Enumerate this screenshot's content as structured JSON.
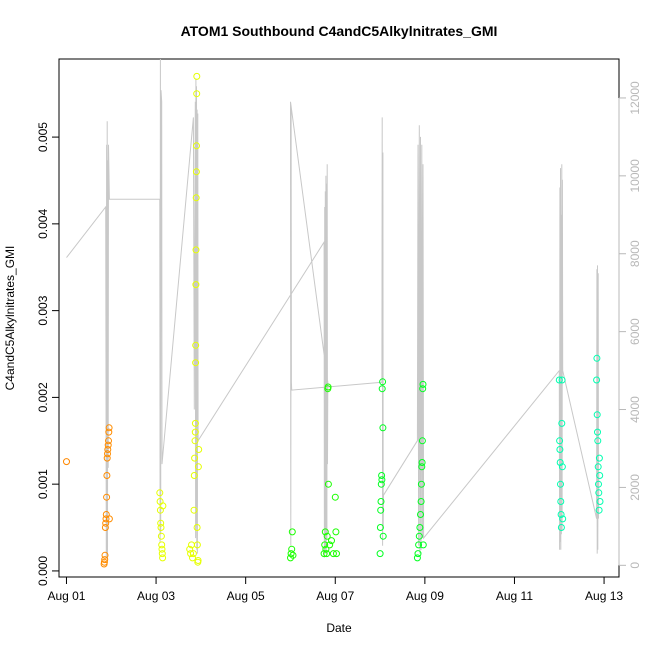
{
  "chart_data": {
    "type": "scatter",
    "title": "ATOM1 Southbound C4andC5Alkylnitrates_GMI",
    "xlabel": "Date",
    "ylabel": "C4andC5Alkylnitrates_GMI",
    "x_ticks": [
      "Aug 01",
      "Aug 03",
      "Aug 05",
      "Aug 07",
      "Aug 09",
      "Aug 11",
      "Aug 13"
    ],
    "y_ticks": [
      "0.000",
      "0.001",
      "0.002",
      "0.003",
      "0.004",
      "0.005"
    ],
    "y2_ticks": [
      "0",
      "2000",
      "4000",
      "6000",
      "8000",
      "10000",
      "12000"
    ],
    "xlim": [
      "2016-07-31T20:00",
      "2016-08-13T08:00"
    ],
    "ylim": [
      -7e-05,
      0.0059
    ],
    "y2lim": [
      -300,
      13000
    ],
    "grid": false,
    "legend": "none",
    "colors": {
      "altitude_line": "#c8c8c8",
      "axis": "#000000",
      "right_axis": "#b8b8b8",
      "marker_day01": "#ff8c00",
      "marker_day03": "#e6ff00",
      "marker_day06": "#1aff00",
      "marker_day09": "#00ff20",
      "marker_day12": "#00ffb0"
    },
    "series": [
      {
        "marker": "circle-open",
        "points": [
          [
            "2016-08-01T00:00",
            0.00126,
            "#ff8800"
          ],
          [
            "2016-08-01T20:10",
            8e-05,
            "#ff8c00"
          ],
          [
            "2016-08-01T20:20",
            0.0001,
            "#ff8c00"
          ],
          [
            "2016-08-01T20:30",
            0.00013,
            "#ff8c00"
          ],
          [
            "2016-08-01T20:40",
            0.00018,
            "#ff8c00"
          ],
          [
            "2016-08-01T20:50",
            0.0005,
            "#ff8c00"
          ],
          [
            "2016-08-01T21:00",
            0.00055,
            "#ff8c00"
          ],
          [
            "2016-08-01T21:10",
            0.0006,
            "#ff8c00"
          ],
          [
            "2016-08-01T21:20",
            0.00065,
            "#ff8c00"
          ],
          [
            "2016-08-01T21:30",
            0.00085,
            "#ff8c00"
          ],
          [
            "2016-08-01T21:40",
            0.0011,
            "#ff8c00"
          ],
          [
            "2016-08-01T21:50",
            0.0013,
            "#ff8c00"
          ],
          [
            "2016-08-01T22:00",
            0.00135,
            "#ff8c00"
          ],
          [
            "2016-08-01T22:10",
            0.0014,
            "#ff8c00"
          ],
          [
            "2016-08-01T22:20",
            0.00145,
            "#ff8c00"
          ],
          [
            "2016-08-01T22:30",
            0.0015,
            "#ff8c00"
          ],
          [
            "2016-08-01T22:40",
            0.0016,
            "#ff8c00"
          ],
          [
            "2016-08-01T22:50",
            0.00165,
            "#ff8c00"
          ],
          [
            "2016-08-01T23:00",
            0.0006,
            "#ff8c00"
          ],
          [
            "2016-08-03T02:00",
            0.0009,
            "#e6ff00"
          ],
          [
            "2016-08-03T02:10",
            0.0008,
            "#e6ff00"
          ],
          [
            "2016-08-03T02:20",
            0.0007,
            "#e6ff00"
          ],
          [
            "2016-08-03T02:30",
            0.00055,
            "#e6ff00"
          ],
          [
            "2016-08-03T02:40",
            0.0005,
            "#e6ff00"
          ],
          [
            "2016-08-03T02:50",
            0.0004,
            "#e6ff00"
          ],
          [
            "2016-08-03T03:00",
            0.0003,
            "#e6ff00"
          ],
          [
            "2016-08-03T03:10",
            0.00025,
            "#e6ff00"
          ],
          [
            "2016-08-03T03:20",
            0.0002,
            "#e6ff00"
          ],
          [
            "2016-08-03T03:30",
            0.00015,
            "#e6ff00"
          ],
          [
            "2016-08-03T03:40",
            0.00075,
            "#e6ff00"
          ],
          [
            "2016-08-03T18:00",
            0.00025,
            "#e6ff00"
          ],
          [
            "2016-08-03T18:30",
            0.0002,
            "#e6ff00"
          ],
          [
            "2016-08-03T19:00",
            0.0003,
            "#e6ff00"
          ],
          [
            "2016-08-03T19:30",
            0.00015,
            "#e6ff00"
          ],
          [
            "2016-08-03T20:00",
            0.0002,
            "#e6ff00"
          ],
          [
            "2016-08-03T20:20",
            0.0007,
            "#e6ff00"
          ],
          [
            "2016-08-03T20:30",
            0.0011,
            "#e6ff00"
          ],
          [
            "2016-08-03T20:40",
            0.0013,
            "#e6ff00"
          ],
          [
            "2016-08-03T20:50",
            0.0015,
            "#e6ff00"
          ],
          [
            "2016-08-03T21:00",
            0.0016,
            "#e6ff00"
          ],
          [
            "2016-08-03T21:05",
            0.0017,
            "#e6ff00"
          ],
          [
            "2016-08-03T21:10",
            0.0024,
            "#e6ff00"
          ],
          [
            "2016-08-03T21:15",
            0.0026,
            "#e6ff00"
          ],
          [
            "2016-08-03T21:20",
            0.0033,
            "#e6ff00"
          ],
          [
            "2016-08-03T21:25",
            0.0037,
            "#e6ff00"
          ],
          [
            "2016-08-03T21:30",
            0.0043,
            "#e6ff00"
          ],
          [
            "2016-08-03T21:35",
            0.0046,
            "#e6ff00"
          ],
          [
            "2016-08-03T21:40",
            0.0049,
            "#e6ff00"
          ],
          [
            "2016-08-03T21:45",
            0.0055,
            "#e6ff00"
          ],
          [
            "2016-08-03T21:50",
            0.0057,
            "#e6ff00"
          ],
          [
            "2016-08-03T22:00",
            0.0005,
            "#e6ff00"
          ],
          [
            "2016-08-03T22:10",
            0.0003,
            "#e6ff00"
          ],
          [
            "2016-08-03T22:20",
            0.0001,
            "#e6ff00"
          ],
          [
            "2016-08-03T22:30",
            0.00012,
            "#e6ff00"
          ],
          [
            "2016-08-03T22:40",
            0.0012,
            "#e6ff00"
          ],
          [
            "2016-08-03T22:50",
            0.0014,
            "#e6ff00"
          ],
          [
            "2016-08-06T00:00",
            0.00015,
            "#1aff00"
          ],
          [
            "2016-08-06T00:20",
            0.0002,
            "#1aff00"
          ],
          [
            "2016-08-06T00:40",
            0.00025,
            "#1aff00"
          ],
          [
            "2016-08-06T01:00",
            0.00045,
            "#1aff00"
          ],
          [
            "2016-08-06T01:20",
            0.00018,
            "#1aff00"
          ],
          [
            "2016-08-06T18:00",
            0.0002,
            "#1aff00"
          ],
          [
            "2016-08-06T18:20",
            0.0003,
            "#1aff00"
          ],
          [
            "2016-08-06T18:40",
            0.00045,
            "#1aff00"
          ],
          [
            "2016-08-06T19:00",
            0.00025,
            "#1aff00"
          ],
          [
            "2016-08-06T19:20",
            0.0002,
            "#1aff00"
          ],
          [
            "2016-08-06T19:40",
            0.0004,
            "#1aff00"
          ],
          [
            "2016-08-06T20:00",
            0.0021,
            "#1aff00"
          ],
          [
            "2016-08-06T20:10",
            0.00212,
            "#1aff00"
          ],
          [
            "2016-08-06T20:20",
            0.001,
            "#1aff00"
          ],
          [
            "2016-08-06T21:00",
            0.0003,
            "#1aff00"
          ],
          [
            "2016-08-06T22:00",
            0.00035,
            "#1aff00"
          ],
          [
            "2016-08-06T23:00",
            0.0002,
            "#1aff00"
          ],
          [
            "2016-08-07T00:00",
            0.00085,
            "#1aff00"
          ],
          [
            "2016-08-07T00:20",
            0.00045,
            "#1aff00"
          ],
          [
            "2016-08-07T00:40",
            0.0002,
            "#1aff00"
          ],
          [
            "2016-08-08T00:00",
            0.0002,
            "#00ff20"
          ],
          [
            "2016-08-08T00:10",
            0.0005,
            "#00ff20"
          ],
          [
            "2016-08-08T00:20",
            0.0007,
            "#00ff20"
          ],
          [
            "2016-08-08T00:30",
            0.0008,
            "#00ff20"
          ],
          [
            "2016-08-08T00:40",
            0.001,
            "#00ff20"
          ],
          [
            "2016-08-08T00:50",
            0.0011,
            "#00ff20"
          ],
          [
            "2016-08-08T01:00",
            0.00105,
            "#00ff20"
          ],
          [
            "2016-08-08T01:10",
            0.0021,
            "#00ff20"
          ],
          [
            "2016-08-08T01:20",
            0.00218,
            "#00ff20"
          ],
          [
            "2016-08-08T01:30",
            0.00165,
            "#00ff20"
          ],
          [
            "2016-08-08T01:40",
            0.0004,
            "#00ff20"
          ],
          [
            "2016-08-08T20:00",
            0.00015,
            "#00ff20"
          ],
          [
            "2016-08-08T20:20",
            0.0002,
            "#00ff20"
          ],
          [
            "2016-08-08T20:40",
            0.0003,
            "#00ff20"
          ],
          [
            "2016-08-08T21:00",
            0.0004,
            "#00ff20"
          ],
          [
            "2016-08-08T21:20",
            0.0005,
            "#00ff20"
          ],
          [
            "2016-08-08T21:40",
            0.00065,
            "#00ff20"
          ],
          [
            "2016-08-08T22:00",
            0.0008,
            "#00ff20"
          ],
          [
            "2016-08-08T22:10",
            0.001,
            "#00ff20"
          ],
          [
            "2016-08-08T22:20",
            0.0012,
            "#00ff20"
          ],
          [
            "2016-08-08T22:30",
            0.00125,
            "#00ff20"
          ],
          [
            "2016-08-08T22:40",
            0.0015,
            "#00ff20"
          ],
          [
            "2016-08-08T22:50",
            0.0021,
            "#00ff20"
          ],
          [
            "2016-08-08T23:00",
            0.00215,
            "#00ff20"
          ],
          [
            "2016-08-08T23:10",
            0.0003,
            "#00ff20"
          ],
          [
            "2016-08-12T00:00",
            0.0022,
            "#00ffb0"
          ],
          [
            "2016-08-12T00:10",
            0.0015,
            "#00ffb0"
          ],
          [
            "2016-08-12T00:20",
            0.0014,
            "#00ffb0"
          ],
          [
            "2016-08-12T00:30",
            0.00125,
            "#00ffb0"
          ],
          [
            "2016-08-12T00:40",
            0.001,
            "#00ffb0"
          ],
          [
            "2016-08-12T00:50",
            0.0008,
            "#00ffb0"
          ],
          [
            "2016-08-12T01:00",
            0.00065,
            "#00ffb0"
          ],
          [
            "2016-08-12T01:10",
            0.0005,
            "#00ffb0"
          ],
          [
            "2016-08-12T01:20",
            0.0017,
            "#00ffb0"
          ],
          [
            "2016-08-12T01:30",
            0.0022,
            "#00ffb0"
          ],
          [
            "2016-08-12T01:40",
            0.0012,
            "#00ffb0"
          ],
          [
            "2016-08-12T01:50",
            0.0006,
            "#00ffb0"
          ],
          [
            "2016-08-12T20:00",
            0.0022,
            "#00ffb0"
          ],
          [
            "2016-08-12T20:10",
            0.00245,
            "#00ffb0"
          ],
          [
            "2016-08-12T20:20",
            0.0018,
            "#00ffb0"
          ],
          [
            "2016-08-12T20:30",
            0.0016,
            "#00ffb0"
          ],
          [
            "2016-08-12T20:40",
            0.0015,
            "#00ffb0"
          ],
          [
            "2016-08-12T20:50",
            0.0012,
            "#00ffb0"
          ],
          [
            "2016-08-12T21:00",
            0.001,
            "#00ffb0"
          ],
          [
            "2016-08-12T21:10",
            0.0009,
            "#00ffb0"
          ],
          [
            "2016-08-12T21:20",
            0.0007,
            "#00ffb0"
          ],
          [
            "2016-08-12T21:30",
            0.0013,
            "#00ffb0"
          ],
          [
            "2016-08-12T21:40",
            0.0011,
            "#00ffb0"
          ],
          [
            "2016-08-12T21:50",
            0.0008,
            "#00ffb0"
          ]
        ]
      },
      {
        "axis": "right",
        "style": "line",
        "points": [
          [
            "2016-08-01T00:00",
            7900
          ],
          [
            "2016-08-01T21:00",
            9200
          ],
          [
            "2016-08-01T21:20",
            200
          ],
          [
            "2016-08-01T21:30",
            10800
          ],
          [
            "2016-08-01T21:40",
            300
          ],
          [
            "2016-08-01T21:50",
            11400
          ],
          [
            "2016-08-01T22:00",
            150
          ],
          [
            "2016-08-01T22:10",
            10400
          ],
          [
            "2016-08-01T22:20",
            2500
          ],
          [
            "2016-08-01T22:30",
            10800
          ],
          [
            "2016-08-01T23:00",
            9400
          ],
          [
            "2016-08-03T02:00",
            9400
          ],
          [
            "2016-08-03T02:10",
            600
          ],
          [
            "2016-08-03T02:20",
            13000
          ],
          [
            "2016-08-03T02:30",
            800
          ],
          [
            "2016-08-03T02:40",
            12200
          ],
          [
            "2016-08-03T03:00",
            11900
          ],
          [
            "2016-08-03T03:10",
            2600
          ],
          [
            "2016-08-03T20:00",
            11500
          ],
          [
            "2016-08-03T20:30",
            4000
          ],
          [
            "2016-08-03T21:00",
            11900
          ],
          [
            "2016-08-03T21:10",
            700
          ],
          [
            "2016-08-03T21:20",
            12500
          ],
          [
            "2016-08-03T21:30",
            1000
          ],
          [
            "2016-08-03T21:40",
            12300
          ],
          [
            "2016-08-03T21:50",
            400
          ],
          [
            "2016-08-03T22:00",
            11700
          ],
          [
            "2016-08-03T22:10",
            300
          ],
          [
            "2016-08-03T22:20",
            11600
          ],
          [
            "2016-08-03T22:30",
            3200
          ],
          [
            "2016-08-06T18:00",
            8300
          ],
          [
            "2016-08-06T18:10",
            200
          ],
          [
            "2016-08-06T18:20",
            9200
          ],
          [
            "2016-08-06T18:30",
            300
          ],
          [
            "2016-08-06T18:40",
            9600
          ],
          [
            "2016-08-06T18:50",
            500
          ],
          [
            "2016-08-06T19:00",
            10000
          ],
          [
            "2016-08-06T19:10",
            300
          ],
          [
            "2016-08-06T19:20",
            9800
          ],
          [
            "2016-08-06T19:30",
            700
          ],
          [
            "2016-08-06T19:40",
            10300
          ],
          [
            "2016-08-06T19:50",
            2600
          ],
          [
            "2016-08-06T20:00",
            4700
          ],
          [
            "2016-08-06T00:00",
            11900
          ],
          [
            "2016-08-06T00:10",
            500
          ],
          [
            "2016-08-06T00:20",
            11800
          ],
          [
            "2016-08-06T00:30",
            4700
          ],
          [
            "2016-08-06T00:40",
            4500
          ],
          [
            "2016-08-08T01:00",
            4700
          ],
          [
            "2016-08-08T01:10",
            11500
          ],
          [
            "2016-08-08T01:20",
            500
          ],
          [
            "2016-08-08T01:30",
            10600
          ],
          [
            "2016-08-08T01:40",
            1000
          ],
          [
            "2016-08-08T01:50",
            1800
          ],
          [
            "2016-08-08T20:00",
            3200
          ],
          [
            "2016-08-08T20:20",
            10800
          ],
          [
            "2016-08-08T20:40",
            500
          ],
          [
            "2016-08-08T21:00",
            11300
          ],
          [
            "2016-08-08T21:20",
            300
          ],
          [
            "2016-08-08T21:40",
            11000
          ],
          [
            "2016-08-08T22:00",
            400
          ],
          [
            "2016-08-08T22:20",
            10800
          ],
          [
            "2016-08-08T22:40",
            700
          ],
          [
            "2016-08-08T23:00",
            10300
          ],
          [
            "2016-08-08T23:20",
            700
          ],
          [
            "2016-08-12T00:00",
            5000
          ],
          [
            "2016-08-12T00:10",
            400
          ],
          [
            "2016-08-12T00:20",
            9700
          ],
          [
            "2016-08-12T00:30",
            600
          ],
          [
            "2016-08-12T00:40",
            10200
          ],
          [
            "2016-08-12T00:50",
            400
          ],
          [
            "2016-08-12T01:00",
            9000
          ],
          [
            "2016-08-12T01:10",
            800
          ],
          [
            "2016-08-12T01:20",
            10300
          ],
          [
            "2016-08-12T01:30",
            900
          ],
          [
            "2016-08-12T01:40",
            9900
          ],
          [
            "2016-08-12T01:50",
            5000
          ],
          [
            "2016-08-12T20:00",
            1200
          ],
          [
            "2016-08-12T20:10",
            7600
          ],
          [
            "2016-08-12T20:20",
            300
          ],
          [
            "2016-08-12T20:30",
            7700
          ],
          [
            "2016-08-12T20:40",
            400
          ],
          [
            "2016-08-12T20:50",
            7500
          ],
          [
            "2016-08-12T21:00",
            1200
          ],
          [
            "2016-08-12T21:10",
            2400
          ]
        ]
      }
    ]
  }
}
